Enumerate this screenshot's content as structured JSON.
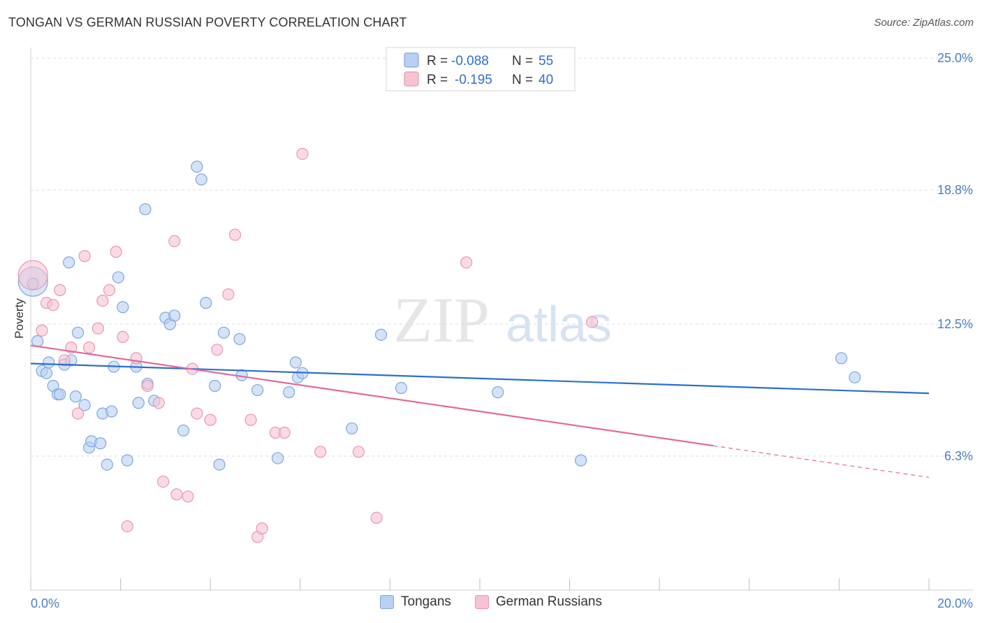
{
  "title": "TONGAN VS GERMAN RUSSIAN POVERTY CORRELATION CHART",
  "source": "Source: ZipAtlas.com",
  "watermark": {
    "zip": "ZIP",
    "atlas": "atlas"
  },
  "legend": {
    "tongans": {
      "r_label": "R =",
      "r_value": "-0.088",
      "n_label": "N =",
      "n_value": "55"
    },
    "german_russians": {
      "r_label": "R =",
      "r_value": "-0.195",
      "n_label": "N =",
      "n_value": "40"
    }
  },
  "colors": {
    "tongans_fill": "#b8d0f2",
    "tongans_stroke": "#7fa7e0",
    "tongans_line": "#2a6fd0",
    "german_russians_fill": "#f7c3d3",
    "german_russians_stroke": "#eb96b3",
    "german_russians_line": "#e4689a",
    "tick_text": "#4a7ec8",
    "grid": "#dddddd"
  },
  "chart_data": {
    "type": "scatter",
    "title": "TONGAN VS GERMAN RUSSIAN POVERTY CORRELATION CHART",
    "xlabel": "",
    "ylabel": "Poverty",
    "xlim": [
      0,
      20
    ],
    "ylim": [
      0,
      25.5
    ],
    "x_tick_labels": [
      {
        "value": 0,
        "label": "0.0%"
      },
      {
        "value": 20,
        "label": "20.0%"
      }
    ],
    "y_ticks": [
      {
        "value": 6.3,
        "label": "6.3%"
      },
      {
        "value": 12.5,
        "label": "12.5%"
      },
      {
        "value": 18.8,
        "label": "18.8%"
      },
      {
        "value": 25.0,
        "label": "25.0%"
      }
    ],
    "grid": "horizontal-dashed",
    "series": [
      {
        "name": "Tongans",
        "key": "tongans",
        "points": [
          [
            0.15,
            11.7
          ],
          [
            0.25,
            10.3
          ],
          [
            0.35,
            10.2
          ],
          [
            0.4,
            10.7
          ],
          [
            0.5,
            9.6
          ],
          [
            0.6,
            9.2
          ],
          [
            0.65,
            9.2
          ],
          [
            0.75,
            10.6
          ],
          [
            0.85,
            15.4
          ],
          [
            0.9,
            10.8
          ],
          [
            1.0,
            9.1
          ],
          [
            1.05,
            12.1
          ],
          [
            1.2,
            8.7
          ],
          [
            1.3,
            6.7
          ],
          [
            1.35,
            7.0
          ],
          [
            1.55,
            6.9
          ],
          [
            1.6,
            8.3
          ],
          [
            1.7,
            5.9
          ],
          [
            1.8,
            8.4
          ],
          [
            1.85,
            10.5
          ],
          [
            1.95,
            14.7
          ],
          [
            2.05,
            13.3
          ],
          [
            2.15,
            6.1
          ],
          [
            2.35,
            10.5
          ],
          [
            2.4,
            8.8
          ],
          [
            2.55,
            17.9
          ],
          [
            2.6,
            9.7
          ],
          [
            2.75,
            8.9
          ],
          [
            3.0,
            12.8
          ],
          [
            3.1,
            12.5
          ],
          [
            3.2,
            12.9
          ],
          [
            3.4,
            7.5
          ],
          [
            3.7,
            19.9
          ],
          [
            3.8,
            19.3
          ],
          [
            3.9,
            13.5
          ],
          [
            4.1,
            9.6
          ],
          [
            4.2,
            5.9
          ],
          [
            4.3,
            12.1
          ],
          [
            4.65,
            11.8
          ],
          [
            4.7,
            10.1
          ],
          [
            5.05,
            9.4
          ],
          [
            5.5,
            6.2
          ],
          [
            5.75,
            9.3
          ],
          [
            5.9,
            10.7
          ],
          [
            5.95,
            10.0
          ],
          [
            6.05,
            10.2
          ],
          [
            7.15,
            7.6
          ],
          [
            7.8,
            12.0
          ],
          [
            8.25,
            9.5
          ],
          [
            10.4,
            9.3
          ],
          [
            12.25,
            6.1
          ],
          [
            18.05,
            10.9
          ],
          [
            18.35,
            10.0
          ],
          {
            "x": 0.05,
            "y": 14.5,
            "large": true
          },
          {
            "x": 0.05,
            "y": 14.4,
            "large": false
          }
        ]
      },
      {
        "name": "German Russians",
        "key": "german_russians",
        "points": [
          [
            0.25,
            12.2
          ],
          [
            0.35,
            13.5
          ],
          [
            0.5,
            13.4
          ],
          [
            0.65,
            14.1
          ],
          [
            0.75,
            10.8
          ],
          [
            0.9,
            11.4
          ],
          [
            1.05,
            8.3
          ],
          [
            1.2,
            15.7
          ],
          [
            1.3,
            11.4
          ],
          [
            1.5,
            12.3
          ],
          [
            1.6,
            13.6
          ],
          [
            1.75,
            14.1
          ],
          [
            1.9,
            15.9
          ],
          [
            2.05,
            11.9
          ],
          [
            2.15,
            3.0
          ],
          [
            2.35,
            10.9
          ],
          [
            2.6,
            9.6
          ],
          [
            2.85,
            8.8
          ],
          [
            2.95,
            5.1
          ],
          [
            3.2,
            16.4
          ],
          [
            3.25,
            4.5
          ],
          [
            3.5,
            4.4
          ],
          [
            3.6,
            10.4
          ],
          [
            3.7,
            8.3
          ],
          [
            4.0,
            8.0
          ],
          [
            4.15,
            11.3
          ],
          [
            4.4,
            13.9
          ],
          [
            4.55,
            16.7
          ],
          [
            4.9,
            8.0
          ],
          [
            5.05,
            2.5
          ],
          [
            5.15,
            2.9
          ],
          [
            5.45,
            7.4
          ],
          [
            5.65,
            7.4
          ],
          [
            6.05,
            20.5
          ],
          [
            6.45,
            6.5
          ],
          [
            7.3,
            6.5
          ],
          [
            7.7,
            3.4
          ],
          [
            9.7,
            15.4
          ],
          [
            12.5,
            12.6
          ],
          {
            "x": 0.05,
            "y": 14.8,
            "large": true
          }
        ]
      }
    ],
    "trendlines": [
      {
        "series": "Tongans",
        "x": [
          0,
          20
        ],
        "y": [
          10.65,
          9.25
        ],
        "dashed_from": null
      },
      {
        "series": "German Russians",
        "x": [
          0,
          20
        ],
        "y": [
          11.5,
          5.3
        ],
        "dashed_from": 15.2
      }
    ]
  },
  "bottom_legend": [
    {
      "key": "tongans",
      "label": "Tongans"
    },
    {
      "key": "german_russians",
      "label": "German Russians"
    }
  ]
}
